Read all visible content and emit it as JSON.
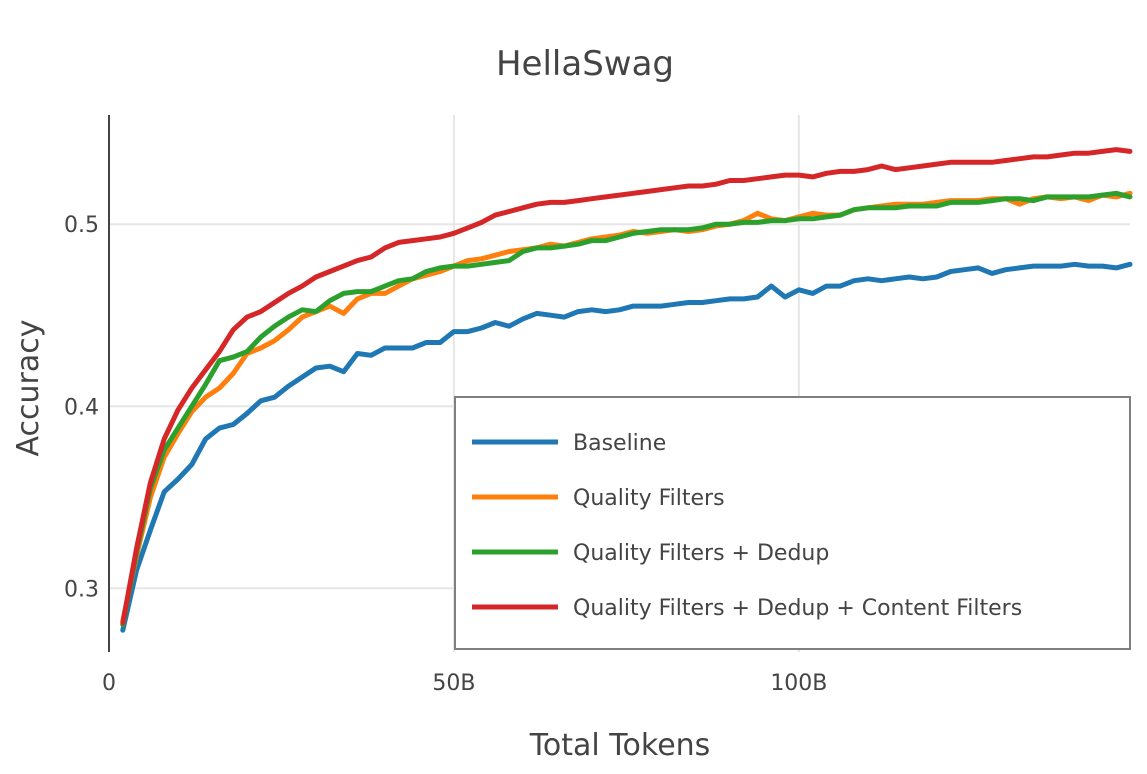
{
  "chart_data": {
    "type": "line",
    "title": "HellaSwag",
    "xlabel": "Total Tokens",
    "ylabel": "Accuracy",
    "xlim": [
      0,
      148
    ],
    "ylim": [
      0.265,
      0.56
    ],
    "x_unit": "B tokens",
    "x_ticks": [
      {
        "value": 0,
        "label": "0"
      },
      {
        "value": 50,
        "label": "50B"
      },
      {
        "value": 100,
        "label": "100B"
      }
    ],
    "y_ticks": [
      {
        "value": 0.3,
        "label": "0.3"
      },
      {
        "value": 0.4,
        "label": "0.4"
      },
      {
        "value": 0.5,
        "label": "0.5"
      }
    ],
    "grid": true,
    "legend_position": "bottom-right",
    "x": [
      2,
      4,
      6,
      8,
      10,
      12,
      14,
      16,
      18,
      20,
      22,
      24,
      26,
      28,
      30,
      32,
      34,
      36,
      38,
      40,
      42,
      44,
      46,
      48,
      50,
      52,
      54,
      56,
      58,
      60,
      62,
      64,
      66,
      68,
      70,
      72,
      74,
      76,
      78,
      80,
      82,
      84,
      86,
      88,
      90,
      92,
      94,
      96,
      98,
      100,
      102,
      104,
      106,
      108,
      110,
      112,
      114,
      116,
      118,
      120,
      122,
      124,
      126,
      128,
      130,
      132,
      134,
      136,
      138,
      140,
      142,
      144,
      146,
      148
    ],
    "series": [
      {
        "name": "Baseline",
        "color": "#1f77b4",
        "values": [
          0.277,
          0.31,
          0.332,
          0.353,
          0.36,
          0.368,
          0.382,
          0.388,
          0.39,
          0.396,
          0.403,
          0.405,
          0.411,
          0.416,
          0.421,
          0.422,
          0.419,
          0.429,
          0.428,
          0.432,
          0.432,
          0.432,
          0.435,
          0.435,
          0.441,
          0.441,
          0.443,
          0.446,
          0.444,
          0.448,
          0.451,
          0.45,
          0.449,
          0.452,
          0.453,
          0.452,
          0.453,
          0.455,
          0.455,
          0.455,
          0.456,
          0.457,
          0.457,
          0.458,
          0.459,
          0.459,
          0.46,
          0.466,
          0.46,
          0.464,
          0.462,
          0.466,
          0.466,
          0.469,
          0.47,
          0.469,
          0.47,
          0.471,
          0.47,
          0.471,
          0.474,
          0.475,
          0.476,
          0.473,
          0.475,
          0.476,
          0.477,
          0.477,
          0.477,
          0.478,
          0.477,
          0.477,
          0.476,
          0.478
        ]
      },
      {
        "name": "Quality Filters",
        "color": "#ff7f0e",
        "values": [
          0.282,
          0.318,
          0.35,
          0.372,
          0.385,
          0.397,
          0.405,
          0.41,
          0.418,
          0.429,
          0.432,
          0.436,
          0.442,
          0.449,
          0.452,
          0.455,
          0.451,
          0.459,
          0.462,
          0.462,
          0.466,
          0.47,
          0.472,
          0.474,
          0.477,
          0.48,
          0.481,
          0.483,
          0.485,
          0.486,
          0.487,
          0.489,
          0.488,
          0.49,
          0.492,
          0.493,
          0.494,
          0.496,
          0.495,
          0.496,
          0.497,
          0.496,
          0.497,
          0.499,
          0.5,
          0.502,
          0.506,
          0.503,
          0.502,
          0.504,
          0.506,
          0.505,
          0.505,
          0.508,
          0.509,
          0.51,
          0.511,
          0.511,
          0.511,
          0.512,
          0.513,
          0.513,
          0.513,
          0.514,
          0.514,
          0.511,
          0.514,
          0.515,
          0.514,
          0.515,
          0.513,
          0.516,
          0.515,
          0.517
        ]
      },
      {
        "name": "Quality Filters + Dedup",
        "color": "#2ca02c",
        "values": [
          0.28,
          0.32,
          0.355,
          0.376,
          0.388,
          0.4,
          0.412,
          0.425,
          0.427,
          0.43,
          0.438,
          0.444,
          0.449,
          0.453,
          0.452,
          0.458,
          0.462,
          0.463,
          0.463,
          0.466,
          0.469,
          0.47,
          0.474,
          0.476,
          0.477,
          0.477,
          0.478,
          0.479,
          0.48,
          0.485,
          0.487,
          0.487,
          0.488,
          0.489,
          0.491,
          0.491,
          0.493,
          0.495,
          0.496,
          0.497,
          0.497,
          0.497,
          0.498,
          0.5,
          0.5,
          0.501,
          0.501,
          0.502,
          0.502,
          0.503,
          0.503,
          0.504,
          0.505,
          0.508,
          0.509,
          0.509,
          0.509,
          0.51,
          0.51,
          0.51,
          0.512,
          0.512,
          0.512,
          0.513,
          0.514,
          0.514,
          0.513,
          0.515,
          0.515,
          0.515,
          0.515,
          0.516,
          0.517,
          0.515
        ]
      },
      {
        "name": "Quality Filters + Dedup + Content Filters",
        "color": "#d62728",
        "values": [
          0.281,
          0.322,
          0.358,
          0.382,
          0.398,
          0.41,
          0.42,
          0.43,
          0.442,
          0.449,
          0.452,
          0.457,
          0.462,
          0.466,
          0.471,
          0.474,
          0.477,
          0.48,
          0.482,
          0.487,
          0.49,
          0.491,
          0.492,
          0.493,
          0.495,
          0.498,
          0.501,
          0.505,
          0.507,
          0.509,
          0.511,
          0.512,
          0.512,
          0.513,
          0.514,
          0.515,
          0.516,
          0.517,
          0.518,
          0.519,
          0.52,
          0.521,
          0.521,
          0.522,
          0.524,
          0.524,
          0.525,
          0.526,
          0.527,
          0.527,
          0.526,
          0.528,
          0.529,
          0.529,
          0.53,
          0.532,
          0.53,
          0.531,
          0.532,
          0.533,
          0.534,
          0.534,
          0.534,
          0.534,
          0.535,
          0.536,
          0.537,
          0.537,
          0.538,
          0.539,
          0.539,
          0.54,
          0.541,
          0.54
        ]
      }
    ]
  }
}
